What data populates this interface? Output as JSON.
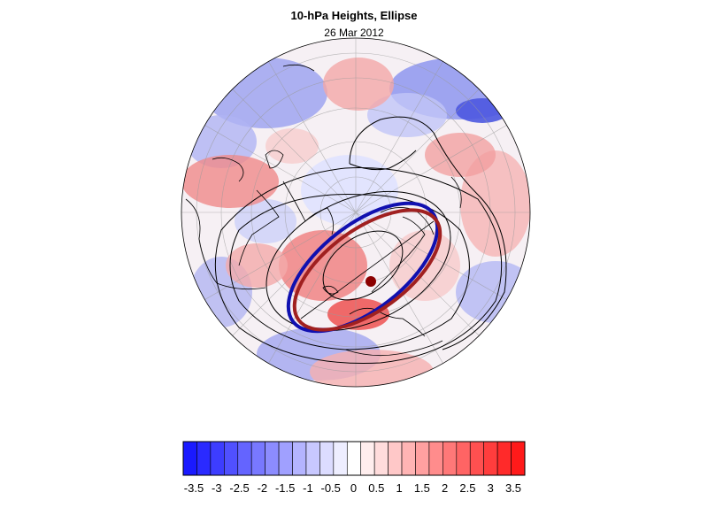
{
  "title": "10-hPa Heights, Ellipse",
  "subtitle": "26 Mar 2012",
  "colorbar": {
    "tick_labels": [
      "-3.5",
      "-3",
      "-2.5",
      "-2",
      "-1.5",
      "-1",
      "-0.5",
      "0",
      "0.5",
      "1",
      "1.5",
      "2",
      "2.5",
      "3",
      "3.5"
    ],
    "colors": [
      "#1a1aff",
      "#2a2aff",
      "#3d3dff",
      "#5050ff",
      "#6464ff",
      "#7878ff",
      "#8c8cff",
      "#a0a0ff",
      "#b4b4ff",
      "#c8c8ff",
      "#dcdcff",
      "#eeeeff",
      "#ffffff",
      "#ffeeee",
      "#ffdcdc",
      "#ffc8c8",
      "#ffb4b4",
      "#ffa0a0",
      "#ff8c8c",
      "#ff7878",
      "#ff6464",
      "#ff5050",
      "#ff3d3d",
      "#ff2a2a",
      "#ff1a1a"
    ]
  },
  "map": {
    "projection": "orthographic-north-polar",
    "ellipse_blue_color": "#1010b0",
    "ellipse_red_color": "#a02020",
    "vortex_center_color": "#8b0000"
  }
}
